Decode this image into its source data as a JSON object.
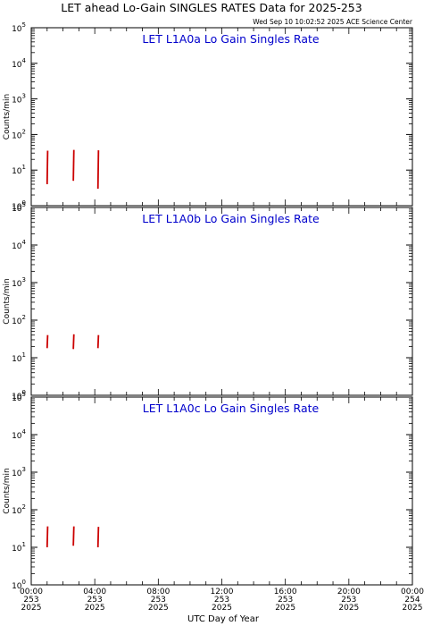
{
  "header": {
    "title": "LET ahead Lo-Gain SINGLES RATES Data for 2025-253",
    "timestamp": "Wed Sep 10 10:02:52 2025 ACE Science Center"
  },
  "xaxis": {
    "label": "UTC Day of Year",
    "ticks": [
      {
        "time": "00:00",
        "day": "253",
        "year": "2025",
        "hour": 0
      },
      {
        "time": "04:00",
        "day": "253",
        "year": "2025",
        "hour": 4
      },
      {
        "time": "08:00",
        "day": "253",
        "year": "2025",
        "hour": 8
      },
      {
        "time": "12:00",
        "day": "253",
        "year": "2025",
        "hour": 12
      },
      {
        "time": "16:00",
        "day": "253",
        "year": "2025",
        "hour": 16
      },
      {
        "time": "20:00",
        "day": "253",
        "year": "2025",
        "hour": 20
      },
      {
        "time": "00:00",
        "day": "254",
        "year": "2025",
        "hour": 24
      }
    ]
  },
  "colors": {
    "title": "#000000",
    "panel_title": "#0000cc",
    "data": "#cc0000",
    "axis": "#000000"
  },
  "chart_data": [
    {
      "type": "line",
      "title": "LET L1A0a Lo Gain Singles Rate",
      "ylabel": "Counts/min",
      "yscale": "log",
      "ylim": [
        1,
        100000
      ],
      "xlim": [
        0,
        24
      ],
      "y_ticks": [
        {
          "value": 1,
          "base": "10",
          "exp": "0"
        },
        {
          "value": 10,
          "base": "10",
          "exp": "1"
        },
        {
          "value": 100,
          "base": "10",
          "exp": "2"
        },
        {
          "value": 1000,
          "base": "10",
          "exp": "3"
        },
        {
          "value": 10000,
          "base": "10",
          "exp": "4"
        },
        {
          "value": 100000,
          "base": "10",
          "exp": "5"
        }
      ],
      "segments": [
        {
          "x": 1.0,
          "ymin": 4,
          "ymax": 35
        },
        {
          "x": 2.65,
          "ymin": 5,
          "ymax": 37
        },
        {
          "x": 4.2,
          "ymin": 3,
          "ymax": 36
        }
      ]
    },
    {
      "type": "line",
      "title": "LET L1A0b Lo Gain Singles Rate",
      "ylabel": "Counts/min",
      "yscale": "log",
      "ylim": [
        1,
        100000
      ],
      "xlim": [
        0,
        24
      ],
      "y_ticks": [
        {
          "value": 1,
          "base": "10",
          "exp": "0"
        },
        {
          "value": 10,
          "base": "10",
          "exp": "1"
        },
        {
          "value": 100,
          "base": "10",
          "exp": "2"
        },
        {
          "value": 1000,
          "base": "10",
          "exp": "3"
        },
        {
          "value": 10000,
          "base": "10",
          "exp": "4"
        },
        {
          "value": 100000,
          "base": "10",
          "exp": "5"
        }
      ],
      "segments": [
        {
          "x": 1.0,
          "ymin": 18,
          "ymax": 40
        },
        {
          "x": 2.65,
          "ymin": 17,
          "ymax": 42
        },
        {
          "x": 4.2,
          "ymin": 18,
          "ymax": 40
        }
      ]
    },
    {
      "type": "line",
      "title": "LET L1A0c Lo Gain Singles Rate",
      "ylabel": "Counts/min",
      "yscale": "log",
      "ylim": [
        1,
        100000
      ],
      "xlim": [
        0,
        24
      ],
      "y_ticks": [
        {
          "value": 1,
          "base": "10",
          "exp": "0"
        },
        {
          "value": 10,
          "base": "10",
          "exp": "1"
        },
        {
          "value": 100,
          "base": "10",
          "exp": "2"
        },
        {
          "value": 1000,
          "base": "10",
          "exp": "3"
        },
        {
          "value": 10000,
          "base": "10",
          "exp": "4"
        },
        {
          "value": 100000,
          "base": "10",
          "exp": "5"
        }
      ],
      "segments": [
        {
          "x": 1.0,
          "ymin": 10,
          "ymax": 36
        },
        {
          "x": 2.65,
          "ymin": 11,
          "ymax": 36
        },
        {
          "x": 4.2,
          "ymin": 10,
          "ymax": 35
        }
      ]
    }
  ]
}
